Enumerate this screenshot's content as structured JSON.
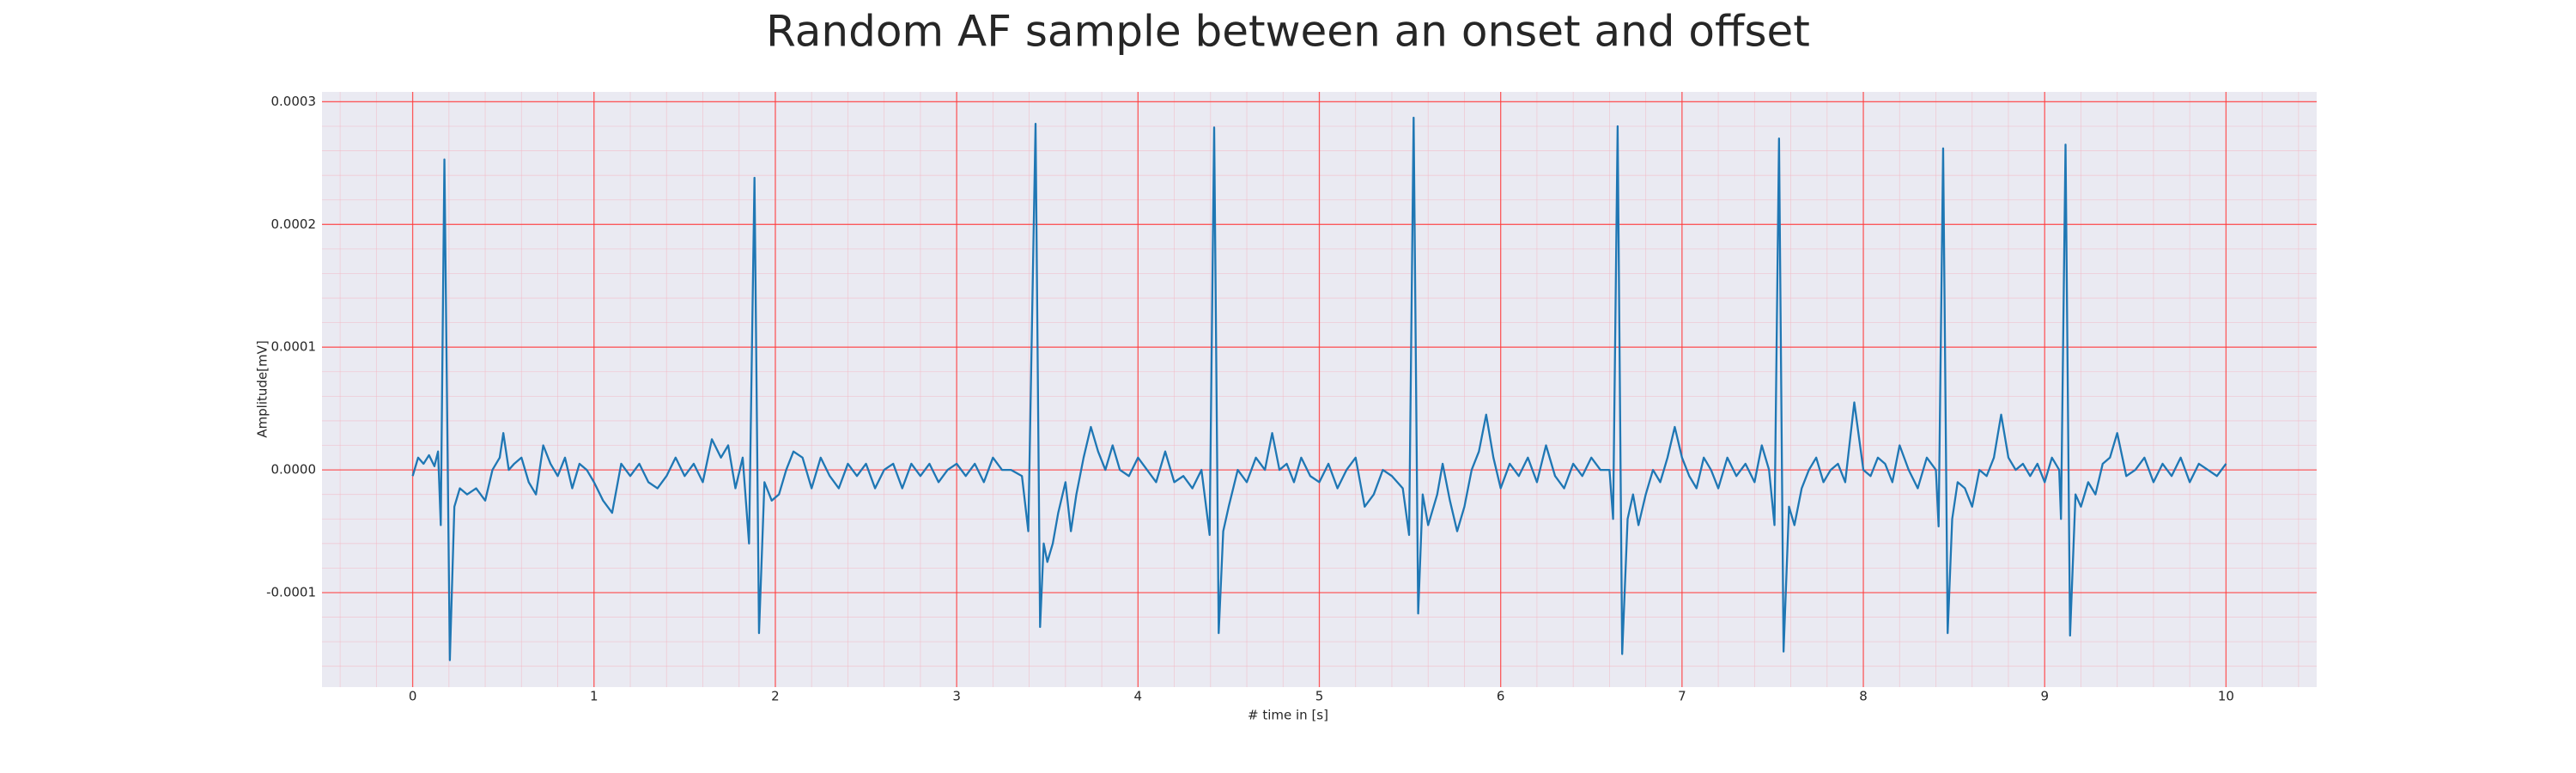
{
  "chart_data": {
    "type": "line",
    "title": "Random AF sample between an onset and offset",
    "xlabel": "# time in [s]",
    "ylabel": "Amplitude[mV]",
    "xlim": [
      -0.5,
      10.5
    ],
    "ylim": [
      -0.000177,
      0.000308
    ],
    "xticks": [
      0,
      1,
      2,
      3,
      4,
      5,
      6,
      7,
      8,
      9,
      10
    ],
    "yticks": [
      -0.0001,
      {
        "value": 0,
        "label": "0.0000"
      },
      0.0001,
      0.0002,
      0.0003
    ],
    "grid": true,
    "grid_color": "#ff3b3b",
    "minor_grid": true,
    "minor_grid_color": "#f4b6c2",
    "background": "#eaeaf2",
    "series": [
      {
        "color": "#1f77b4",
        "x": [
          0.0,
          0.03,
          0.06,
          0.09,
          0.12,
          0.14,
          0.155,
          0.175,
          0.205,
          0.23,
          0.26,
          0.3,
          0.35,
          0.4,
          0.44,
          0.48,
          0.5,
          0.53,
          0.56,
          0.6,
          0.64,
          0.68,
          0.72,
          0.76,
          0.8,
          0.84,
          0.88,
          0.92,
          0.96,
          1.0,
          1.05,
          1.1,
          1.15,
          1.2,
          1.25,
          1.3,
          1.35,
          1.4,
          1.45,
          1.5,
          1.55,
          1.6,
          1.65,
          1.7,
          1.74,
          1.78,
          1.82,
          1.855,
          1.885,
          1.91,
          1.94,
          1.98,
          2.02,
          2.06,
          2.1,
          2.15,
          2.2,
          2.25,
          2.3,
          2.35,
          2.4,
          2.45,
          2.5,
          2.55,
          2.6,
          2.65,
          2.7,
          2.75,
          2.8,
          2.85,
          2.9,
          2.95,
          3.0,
          3.05,
          3.1,
          3.15,
          3.2,
          3.25,
          3.3,
          3.36,
          3.395,
          3.435,
          3.46,
          3.48,
          3.5,
          3.53,
          3.56,
          3.6,
          3.63,
          3.66,
          3.7,
          3.74,
          3.78,
          3.82,
          3.86,
          3.9,
          3.95,
          4.0,
          4.05,
          4.1,
          4.15,
          4.2,
          4.25,
          4.3,
          4.35,
          4.395,
          4.42,
          4.445,
          4.47,
          4.5,
          4.55,
          4.6,
          4.65,
          4.7,
          4.74,
          4.78,
          4.82,
          4.86,
          4.9,
          4.95,
          5.0,
          5.05,
          5.1,
          5.15,
          5.2,
          5.25,
          5.3,
          5.35,
          5.4,
          5.46,
          5.495,
          5.52,
          5.545,
          5.57,
          5.6,
          5.65,
          5.68,
          5.72,
          5.76,
          5.8,
          5.84,
          5.88,
          5.92,
          5.96,
          6.0,
          6.05,
          6.1,
          6.15,
          6.2,
          6.25,
          6.3,
          6.35,
          6.4,
          6.45,
          6.5,
          6.55,
          6.6,
          6.62,
          6.645,
          6.67,
          6.7,
          6.73,
          6.76,
          6.8,
          6.84,
          6.88,
          6.92,
          6.96,
          7.0,
          7.04,
          7.08,
          7.12,
          7.16,
          7.2,
          7.25,
          7.3,
          7.35,
          7.4,
          7.44,
          7.48,
          7.51,
          7.535,
          7.56,
          7.59,
          7.62,
          7.66,
          7.7,
          7.74,
          7.78,
          7.82,
          7.86,
          7.9,
          7.95,
          8.0,
          8.04,
          8.08,
          8.12,
          8.16,
          8.2,
          8.25,
          8.3,
          8.35,
          8.4,
          8.415,
          8.44,
          8.465,
          8.49,
          8.52,
          8.56,
          8.6,
          8.64,
          8.68,
          8.72,
          8.76,
          8.8,
          8.84,
          8.88,
          8.92,
          8.96,
          9.0,
          9.04,
          9.08,
          9.09,
          9.115,
          9.14,
          9.17,
          9.2,
          9.24,
          9.28,
          9.32,
          9.36,
          9.4,
          9.45,
          9.5,
          9.55,
          9.6,
          9.65,
          9.7,
          9.75,
          9.8,
          9.85,
          9.9,
          9.95,
          10.0
        ],
        "values": [
          -5e-06,
          1e-05,
          5e-06,
          1.2e-05,
          3e-06,
          1.5e-05,
          -4.5e-05,
          0.000253,
          -0.000155,
          -3e-05,
          -1.5e-05,
          -2e-05,
          -1.5e-05,
          -2.5e-05,
          0,
          1e-05,
          3e-05,
          0,
          5e-06,
          1e-05,
          -1e-05,
          -2e-05,
          2e-05,
          5e-06,
          -5e-06,
          1e-05,
          -1.5e-05,
          5e-06,
          0,
          -1e-05,
          -2.5e-05,
          -3.5e-05,
          5e-06,
          -5e-06,
          5e-06,
          -1e-05,
          -1.5e-05,
          -5e-06,
          1e-05,
          -5e-06,
          5e-06,
          -1e-05,
          2.5e-05,
          1e-05,
          2e-05,
          -1.5e-05,
          1e-05,
          -6e-05,
          0.000238,
          -0.000133,
          -1e-05,
          -2.5e-05,
          -2e-05,
          0,
          1.5e-05,
          1e-05,
          -1.5e-05,
          1e-05,
          -5e-06,
          -1.5e-05,
          5e-06,
          -5e-06,
          5e-06,
          -1.5e-05,
          0,
          5e-06,
          -1.5e-05,
          5e-06,
          -5e-06,
          5e-06,
          -1e-05,
          0,
          5e-06,
          -5e-06,
          5e-06,
          -1e-05,
          1e-05,
          0,
          0,
          -5e-06,
          -5e-05,
          0.000282,
          -0.000128,
          -6e-05,
          -7.5e-05,
          -6e-05,
          -3.5e-05,
          -1e-05,
          -5e-05,
          -2e-05,
          1e-05,
          3.5e-05,
          1.5e-05,
          0,
          2e-05,
          0,
          -5e-06,
          1e-05,
          0,
          -1e-05,
          1.5e-05,
          -1e-05,
          -5e-06,
          -1.5e-05,
          0,
          -5.3e-05,
          0.000279,
          -0.000133,
          -5e-05,
          -3e-05,
          0,
          -1e-05,
          1e-05,
          0,
          3e-05,
          0,
          5e-06,
          -1e-05,
          1e-05,
          -5e-06,
          -1e-05,
          5e-06,
          -1.5e-05,
          0,
          1e-05,
          -3e-05,
          -2e-05,
          0,
          -5e-06,
          -1.5e-05,
          -5.3e-05,
          0.000287,
          -0.000117,
          -2e-05,
          -4.5e-05,
          -2e-05,
          5e-06,
          -2.5e-05,
          -5e-05,
          -3e-05,
          0,
          1.5e-05,
          4.5e-05,
          1e-05,
          -1.5e-05,
          5e-06,
          -5e-06,
          1e-05,
          -1e-05,
          2e-05,
          -5e-06,
          -1.5e-05,
          5e-06,
          -5e-06,
          1e-05,
          0,
          0,
          -4e-05,
          0.00028,
          -0.00015,
          -4e-05,
          -2e-05,
          -4.5e-05,
          -2e-05,
          0,
          -1e-05,
          1e-05,
          3.5e-05,
          1e-05,
          -5e-06,
          -1.5e-05,
          1e-05,
          0,
          -1.5e-05,
          1e-05,
          -5e-06,
          5e-06,
          -1e-05,
          2e-05,
          0,
          -4.5e-05,
          0.00027,
          -0.000148,
          -3e-05,
          -4.5e-05,
          -1.5e-05,
          0,
          1e-05,
          -1e-05,
          0,
          5e-06,
          -1e-05,
          5.5e-05,
          0,
          -5e-06,
          1e-05,
          5e-06,
          -1e-05,
          2e-05,
          0,
          -1.5e-05,
          1e-05,
          0,
          -4.6e-05,
          0.000262,
          -0.000133,
          -4e-05,
          -1e-05,
          -1.5e-05,
          -3e-05,
          0,
          -5e-06,
          1e-05,
          4.5e-05,
          1e-05,
          0,
          5e-06,
          -5e-06,
          5e-06,
          -1e-05,
          1e-05,
          0,
          -4e-05,
          0.000265,
          -0.000135,
          -2e-05,
          -3e-05,
          -1e-05,
          -2e-05,
          5e-06,
          1e-05,
          3e-05,
          -5e-06,
          0,
          1e-05,
          -1e-05,
          5e-06,
          -5e-06,
          1e-05,
          -1e-05,
          5e-06,
          0,
          -5e-06,
          5e-06
        ]
      }
    ]
  }
}
